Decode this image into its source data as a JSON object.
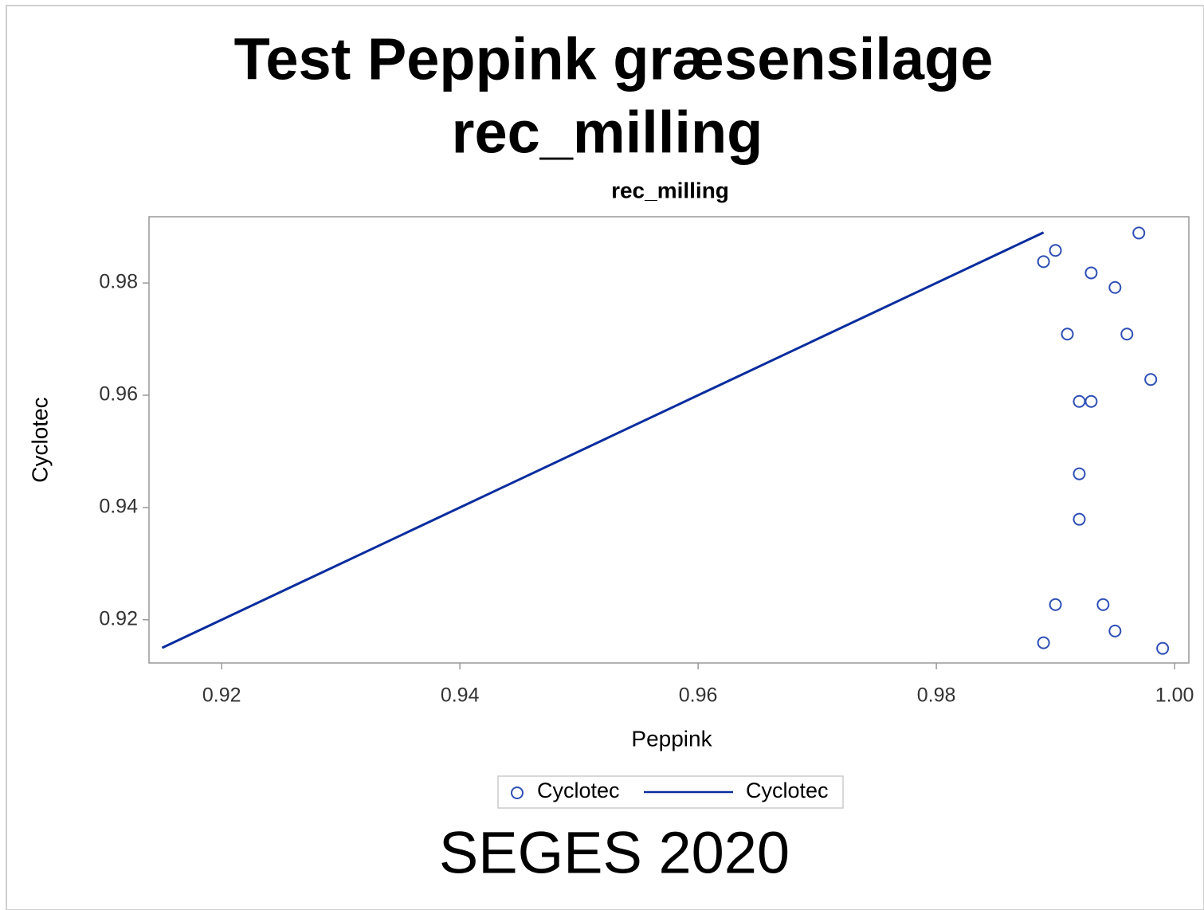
{
  "chart_data": {
    "type": "scatter",
    "title": [
      "Test Peppink græsensilage",
      "rec_milling"
    ],
    "subtitle": "rec_milling",
    "footnote": "SEGES 2020",
    "x_label": "Peppink",
    "y_label": "Cyclotec",
    "xlim": [
      0.9139,
      1.0012
    ],
    "ylim": [
      0.9123,
      0.9918
    ],
    "xticks": [
      0.92,
      0.94,
      0.96,
      0.98,
      {
        "value": 1,
        "label": "1.00"
      }
    ],
    "yticks": [
      0.92,
      0.94,
      0.96,
      0.98
    ],
    "grid": false,
    "legend": "bottom",
    "title_color": "#008000",
    "series": [
      {
        "name": "Cyclotec",
        "type": "scatter",
        "color": "#2e4fb5",
        "x": [
          0.989,
          0.99,
          0.997,
          0.993,
          0.995,
          0.991,
          0.996,
          0.998,
          0.992,
          0.993,
          0.992,
          0.992,
          0.99,
          0.994,
          0.995,
          0.989,
          0.999
        ],
        "values": [
          0.9838,
          0.9858,
          0.9889,
          0.9818,
          0.9792,
          0.9709,
          0.9709,
          0.9628,
          0.9589,
          0.9589,
          0.946,
          0.9379,
          0.9227,
          0.9227,
          0.918,
          0.9159,
          0.9149
        ]
      },
      {
        "name": "Cyclotec",
        "type": "line",
        "color": "#0a2d9e",
        "x": [
          0.915,
          0.989
        ],
        "values": [
          0.915,
          0.989
        ]
      }
    ]
  }
}
